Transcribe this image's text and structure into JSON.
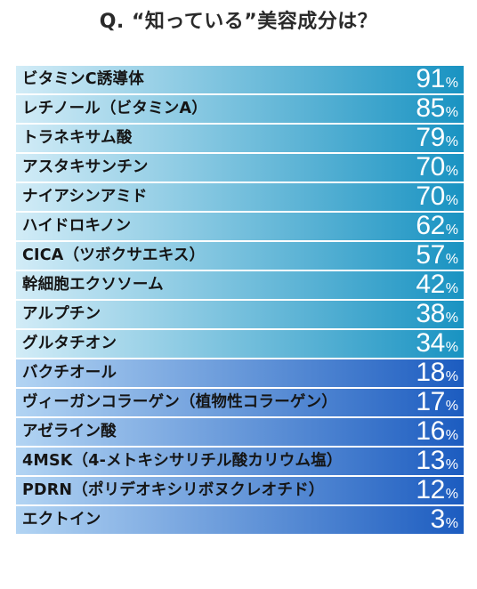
{
  "title": "Q. “知っている”美容成分は？",
  "unit": "%",
  "colors": {
    "band_a": [
      "#d2ecf7",
      "#1993c2"
    ],
    "band_b": [
      "#b2d4f3",
      "#1c5cc0"
    ],
    "row_divider": "#ffffff"
  },
  "chart_data": {
    "type": "bar",
    "orientation": "horizontal",
    "title": "Q. “知っている”美容成分は？",
    "unit": "%",
    "categories": [
      "ビタミンC誘導体",
      "レチノール（ビタミンA）",
      "トラネキサム酸",
      "アスタキサンチン",
      "ナイアシンアミド",
      "ハイドロキノン",
      "CICA（ツボクサエキス）",
      "幹細胞エクソソーム",
      "アルプチン",
      "グルタチオン",
      "バクチオール",
      "ヴィーガンコラーゲン（植物性コラーゲン）",
      "アゼライン酸",
      "4MSK（4-メトキシサリチル酸カリウム塩）",
      "PDRN（ポリデオキシリボヌクレオチド）",
      "エクトイン"
    ],
    "values": [
      91,
      85,
      79,
      70,
      70,
      62,
      57,
      42,
      38,
      34,
      18,
      17,
      16,
      13,
      12,
      3
    ]
  }
}
